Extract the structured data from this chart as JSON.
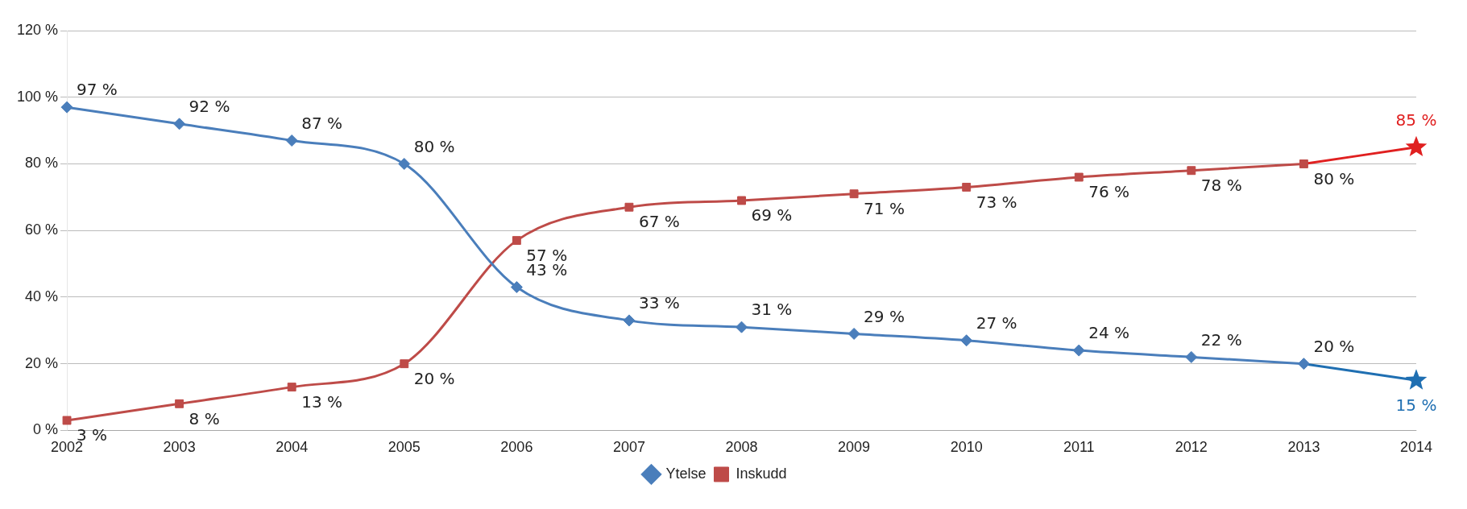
{
  "chart_data": {
    "type": "line",
    "categories": [
      "2002",
      "2003",
      "2004",
      "2005",
      "2006",
      "2007",
      "2008",
      "2009",
      "2010",
      "2011",
      "2012",
      "2013",
      "2014"
    ],
    "series": [
      {
        "name": "Ytelse",
        "color": "#4a7ebb",
        "marker": "diamond",
        "values": [
          97,
          92,
          87,
          80,
          43,
          33,
          31,
          29,
          27,
          24,
          22,
          20,
          null
        ],
        "value_labels": [
          "97 %",
          "92 %",
          "87 %",
          "80 %",
          "43 %",
          "33 %",
          "31 %",
          "29 %",
          "27 %",
          "24 %",
          "22 %",
          "20 %",
          null
        ]
      },
      {
        "name": "Inskudd",
        "color": "#be4b48",
        "marker": "square",
        "values": [
          3,
          8,
          13,
          20,
          57,
          67,
          69,
          71,
          73,
          76,
          78,
          80,
          null
        ],
        "value_labels": [
          "3 %",
          "8 %",
          "13 %",
          "20 %",
          "57 %",
          "67 %",
          "69 %",
          "71 %",
          "73 %",
          "76 %",
          "78 %",
          "80 %",
          null
        ]
      },
      {
        "color": "#1f6fb2",
        "marker": "star",
        "values": [
          null,
          null,
          null,
          null,
          null,
          null,
          null,
          null,
          null,
          null,
          null,
          20,
          15
        ],
        "value_labels": [
          null,
          null,
          null,
          null,
          null,
          null,
          null,
          null,
          null,
          null,
          null,
          null,
          "15 %"
        ]
      },
      {
        "color": "#e02020",
        "marker": "star",
        "values": [
          null,
          null,
          null,
          null,
          null,
          null,
          null,
          null,
          null,
          null,
          null,
          80,
          85
        ],
        "value_labels": [
          null,
          null,
          null,
          null,
          null,
          null,
          null,
          null,
          null,
          null,
          null,
          null,
          "85 %"
        ]
      }
    ],
    "ylim": [
      0,
      120
    ],
    "yticks": [
      {
        "value": 0,
        "label": "0 %"
      },
      {
        "value": 20,
        "label": "20 %"
      },
      {
        "value": 40,
        "label": "40 %"
      },
      {
        "value": 60,
        "label": "60 %"
      },
      {
        "value": 80,
        "label": "80 %"
      },
      {
        "value": 100,
        "label": "100 %"
      },
      {
        "value": 120,
        "label": "120 %"
      }
    ],
    "grid": "y",
    "legend": "bottom"
  }
}
